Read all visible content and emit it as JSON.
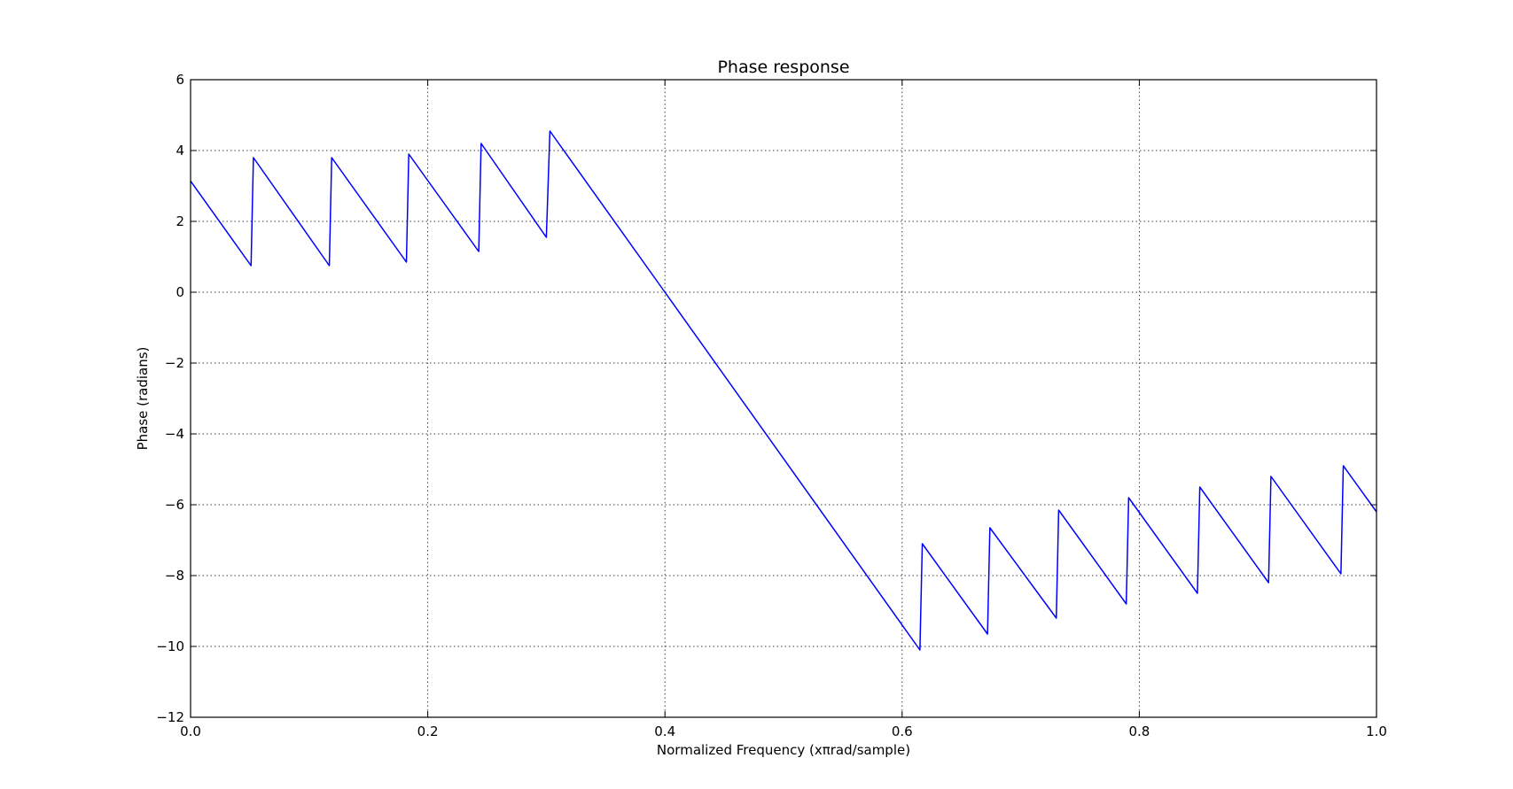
{
  "chart_data": {
    "type": "line",
    "title": "Phase response",
    "xlabel": "Normalized Frequency (xπrad/sample)",
    "ylabel": "Phase (radians)",
    "xlim": [
      0.0,
      1.0
    ],
    "ylim": [
      -12,
      6
    ],
    "xticks": [
      0.0,
      0.2,
      0.4,
      0.6,
      0.8,
      1.0
    ],
    "xtick_labels": [
      "0.0",
      "0.2",
      "0.4",
      "0.6",
      "0.8",
      "1.0"
    ],
    "yticks": [
      -12,
      -10,
      -8,
      -6,
      -4,
      -2,
      0,
      2,
      4,
      6
    ],
    "ytick_labels": [
      "−12",
      "−10",
      "−8",
      "−6",
      "−4",
      "−2",
      "0",
      "2",
      "4",
      "6"
    ],
    "grid": true,
    "line_color": "#0000ff",
    "series": [
      {
        "x": [
          0.0,
          0.051,
          0.053,
          0.117,
          0.119,
          0.182,
          0.184,
          0.243,
          0.245,
          0.3,
          0.303,
          0.4,
          0.615,
          0.617,
          0.672,
          0.674,
          0.73,
          0.732,
          0.789,
          0.791,
          0.849,
          0.851,
          0.909,
          0.911,
          0.97,
          0.972,
          1.0
        ],
        "y": [
          3.14,
          0.75,
          3.8,
          0.75,
          3.8,
          0.85,
          3.9,
          1.15,
          4.2,
          1.55,
          4.55,
          0.0,
          -10.1,
          -7.1,
          -9.65,
          -6.65,
          -9.2,
          -6.15,
          -8.8,
          -5.8,
          -8.5,
          -5.5,
          -8.2,
          -5.2,
          -7.95,
          -4.9,
          -6.2
        ]
      }
    ]
  }
}
